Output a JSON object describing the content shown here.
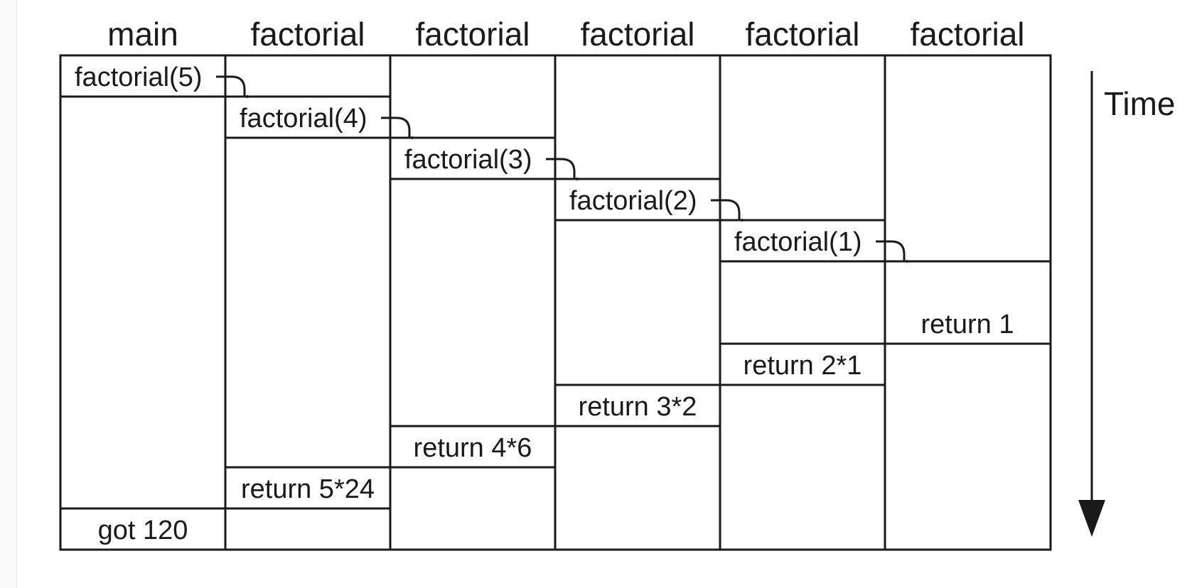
{
  "columns": [
    "main",
    "factorial",
    "factorial",
    "factorial",
    "factorial",
    "factorial"
  ],
  "calls": [
    {
      "column": 0,
      "text": "factorial(5)"
    },
    {
      "column": 1,
      "text": "factorial(4)"
    },
    {
      "column": 2,
      "text": "factorial(3)"
    },
    {
      "column": 3,
      "text": "factorial(2)"
    },
    {
      "column": 4,
      "text": "factorial(1)"
    }
  ],
  "returns": [
    {
      "column": 5,
      "text": "return 1"
    },
    {
      "column": 4,
      "text": "return 2*1"
    },
    {
      "column": 3,
      "text": "return 3*2"
    },
    {
      "column": 2,
      "text": "return 4*6"
    },
    {
      "column": 1,
      "text": "return 5*24"
    },
    {
      "column": 0,
      "text": "got 120"
    }
  ],
  "time_label": "Time"
}
